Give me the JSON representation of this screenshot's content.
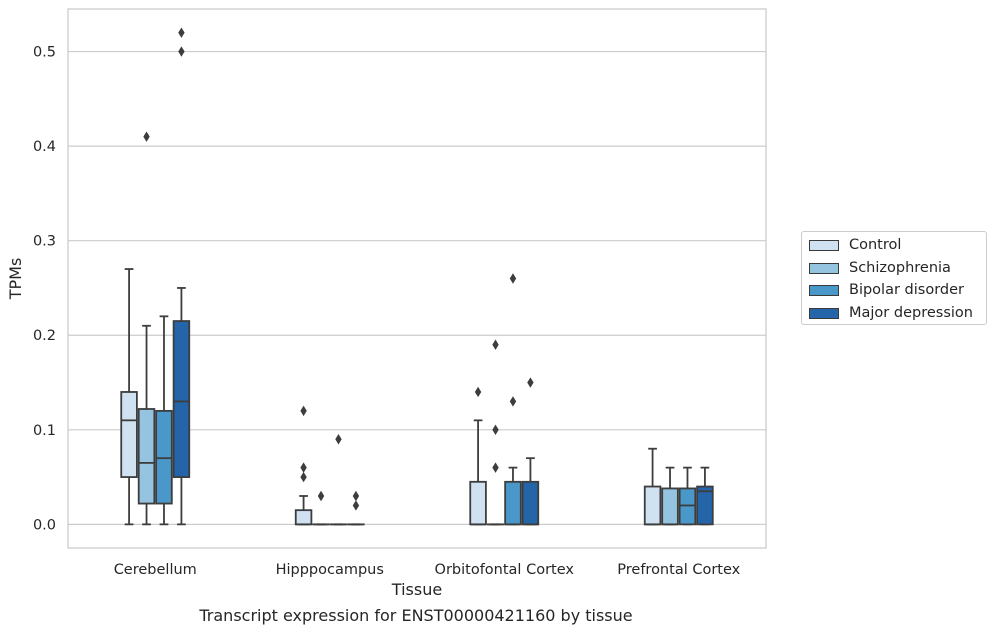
{
  "caption": "Transcript expression for ENST00000421160 by tissue",
  "chart_data": {
    "type": "box",
    "title": "",
    "xlabel": "Tissue",
    "ylabel": "TPMs",
    "ylim": [
      -0.025,
      0.545
    ],
    "yticks": [
      0.0,
      0.1,
      0.2,
      0.3,
      0.4,
      0.5
    ],
    "ytick_labels": [
      "0.0",
      "0.1",
      "0.2",
      "0.3",
      "0.4",
      "0.5"
    ],
    "grid": "horizontal",
    "legend_position": "right",
    "categories": [
      "Cerebellum",
      "Hipppocampus",
      "Orbitofontal Cortex",
      "Prefrontal Cortex"
    ],
    "series": [
      {
        "name": "Control",
        "color": "#d0e1f2",
        "boxes": [
          {
            "whislo": 0.0,
            "q1": 0.05,
            "med": 0.11,
            "q3": 0.14,
            "whishi": 0.27,
            "fliers": []
          },
          {
            "whislo": 0.0,
            "q1": 0.0,
            "med": 0.0,
            "q3": 0.015,
            "whishi": 0.03,
            "fliers": [
              0.05,
              0.06,
              0.12
            ]
          },
          {
            "whislo": 0.0,
            "q1": 0.0,
            "med": 0.0,
            "q3": 0.045,
            "whishi": 0.11,
            "fliers": [
              0.14
            ]
          },
          {
            "whislo": 0.0,
            "q1": 0.0,
            "med": 0.0,
            "q3": 0.04,
            "whishi": 0.08,
            "fliers": []
          }
        ]
      },
      {
        "name": "Schizophrenia",
        "color": "#94c4df",
        "boxes": [
          {
            "whislo": 0.0,
            "q1": 0.022,
            "med": 0.065,
            "q3": 0.122,
            "whishi": 0.21,
            "fliers": [
              0.41
            ]
          },
          {
            "whislo": 0.0,
            "q1": 0.0,
            "med": 0.0,
            "q3": 0.0,
            "whishi": 0.0,
            "fliers": [
              0.03
            ]
          },
          {
            "whislo": 0.0,
            "q1": 0.0,
            "med": 0.0,
            "q3": 0.0,
            "whishi": 0.0,
            "fliers": [
              0.06,
              0.1,
              0.19
            ]
          },
          {
            "whislo": 0.0,
            "q1": 0.0,
            "med": 0.0,
            "q3": 0.038,
            "whishi": 0.06,
            "fliers": []
          }
        ]
      },
      {
        "name": "Bipolar disorder",
        "color": "#4a98c9",
        "boxes": [
          {
            "whislo": 0.0,
            "q1": 0.022,
            "med": 0.07,
            "q3": 0.12,
            "whishi": 0.22,
            "fliers": []
          },
          {
            "whislo": 0.0,
            "q1": 0.0,
            "med": 0.0,
            "q3": 0.0,
            "whishi": 0.0,
            "fliers": [
              0.09
            ]
          },
          {
            "whislo": 0.0,
            "q1": 0.0,
            "med": 0.0,
            "q3": 0.045,
            "whishi": 0.06,
            "fliers": [
              0.13,
              0.26
            ]
          },
          {
            "whislo": 0.0,
            "q1": 0.0,
            "med": 0.02,
            "q3": 0.038,
            "whishi": 0.06,
            "fliers": []
          }
        ]
      },
      {
        "name": "Major depression",
        "color": "#2464a9",
        "boxes": [
          {
            "whislo": 0.0,
            "q1": 0.05,
            "med": 0.13,
            "q3": 0.215,
            "whishi": 0.25,
            "fliers": [
              0.5,
              0.52
            ]
          },
          {
            "whislo": 0.0,
            "q1": 0.0,
            "med": 0.0,
            "q3": 0.0,
            "whishi": 0.0,
            "fliers": [
              0.02,
              0.03
            ]
          },
          {
            "whislo": 0.0,
            "q1": 0.0,
            "med": 0.0,
            "q3": 0.045,
            "whishi": 0.07,
            "fliers": [
              0.15
            ]
          },
          {
            "whislo": 0.0,
            "q1": 0.0,
            "med": 0.035,
            "q3": 0.04,
            "whishi": 0.06,
            "fliers": []
          }
        ]
      }
    ]
  }
}
